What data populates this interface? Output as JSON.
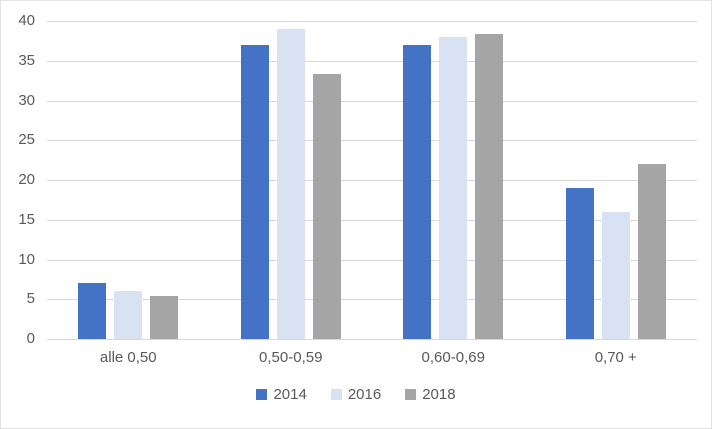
{
  "chart_data": {
    "type": "bar",
    "title": "",
    "xlabel": "",
    "ylabel": "",
    "categories": [
      "alle 0,50",
      "0,50-0,59",
      "0,60-0,69",
      "0,70 +"
    ],
    "series": [
      {
        "name": "2014",
        "color": "#4472C4",
        "values": [
          7,
          37,
          37,
          19
        ]
      },
      {
        "name": "2016",
        "color": "#D9E2F3",
        "values": [
          6,
          39,
          38,
          16
        ]
      },
      {
        "name": "2018",
        "color": "#A5A5A5",
        "values": [
          5.4,
          33.3,
          38.4,
          22
        ]
      }
    ],
    "ylim": [
      0,
      40
    ],
    "ytick_step": 5,
    "ytick_labels": [
      "0",
      "5",
      "10",
      "15",
      "20",
      "25",
      "30",
      "35",
      "40"
    ],
    "grid": true,
    "legend_position": "bottom",
    "colors": {
      "gridline": "#D9D9D9",
      "axis_text": "#595959",
      "background": "#FFFFFF",
      "frame_border": "#E3E3E3"
    }
  }
}
